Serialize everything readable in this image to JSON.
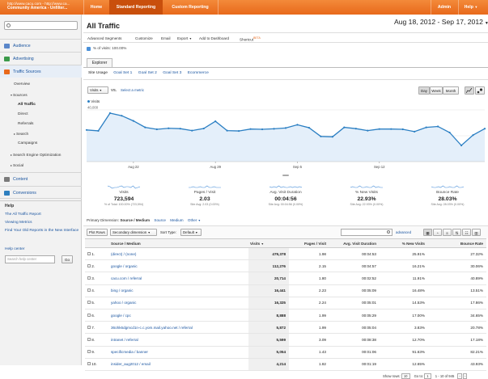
{
  "topbar": {
    "account_url": "http://www.cacu.com - http://www.ca...",
    "account_name": "Community America - Unfilter...",
    "nav": [
      "Home",
      "Standard Reporting",
      "Custom Reporting"
    ],
    "admin": "Admin",
    "help": "Help"
  },
  "sidebar": {
    "sections": [
      "Audience",
      "Advertising",
      "Traffic Sources",
      "Content",
      "Conversions"
    ],
    "traffic_items": {
      "overview": "Overview",
      "sources": "Sources",
      "all_traffic": "All Traffic",
      "direct": "Direct",
      "referrals": "Referrals",
      "search": "Search",
      "campaigns": "Campaigns",
      "seo": "Search Engine Optimization",
      "social": "Social"
    },
    "help_title": "Help",
    "help_links": [
      "The All Traffic Report",
      "Viewing Metrics",
      "Find Your Old Reports in the New Interface"
    ],
    "help_center": "Help center",
    "help_search_placeholder": "Search help center",
    "go_label": "Go"
  },
  "report": {
    "title": "All Traffic",
    "date_range": "Aug 18, 2012 - Sep 17, 2012",
    "toolbar": [
      "Advanced Segments",
      "Customize",
      "Email",
      "Export",
      "Add to Dashboard",
      "Shortcut"
    ],
    "beta": "BETA",
    "segment": "% of visits: 100.00%",
    "explorer_tab": "Explorer",
    "subtabs": [
      "Site Usage",
      "Goal Set 1",
      "Goal Set 2",
      "Goal Set 3",
      "Ecommerce"
    ],
    "metric_select": "Visits",
    "vs": "VS.",
    "select_metric": "Select a metric",
    "period_buttons": [
      "Day",
      "Week",
      "Month"
    ],
    "chart_legend": "Visits"
  },
  "chart_data": {
    "type": "line",
    "series": [
      {
        "name": "Visits",
        "values": [
          24500,
          23800,
          37500,
          35500,
          31500,
          26500,
          25000,
          25800,
          25500,
          24000,
          25600,
          31200,
          24000,
          23700,
          25200,
          25000,
          25400,
          26000,
          28500,
          26200,
          19500,
          19200,
          26500,
          25500,
          24000,
          25200,
          25200,
          25000,
          23200,
          26500,
          27200,
          22500,
          12500,
          20500,
          25500
        ]
      }
    ],
    "x_tick_labels": [
      "Aug 22",
      "Aug 29",
      "Sep 5",
      "Sep 12"
    ],
    "y_tick_labels": [
      "40,000",
      "20,000"
    ],
    "ylim": [
      0,
      45000
    ],
    "color": "#2b7fc3"
  },
  "metrics": [
    {
      "label": "Visits",
      "value": "723,594",
      "sub": "% of Total: 100.00% (723,594)"
    },
    {
      "label": "Pages / Visit",
      "value": "2.03",
      "sub": "Site Avg: 2.03 (0.00%)"
    },
    {
      "label": "Avg. Visit Duration",
      "value": "00:04:56",
      "sub": "Site Avg: 00:04:56 (0.00%)"
    },
    {
      "label": "% New Visits",
      "value": "22.93%",
      "sub": "Site Avg: 22.93% (0.00%)"
    },
    {
      "label": "Bounce Rate",
      "value": "28.03%",
      "sub": "Site Avg: 28.03% (0.00%)"
    }
  ],
  "table_controls": {
    "primary_dimension_label": "Primary Dimension:",
    "dims": [
      "Source / Medium",
      "Source",
      "Medium",
      "Other"
    ],
    "plot_rows": "Plot Rows",
    "secondary_dimension": "Secondary dimension",
    "sort_type_label": "Sort Type:",
    "sort_type_value": "Default",
    "advanced": "advanced"
  },
  "table": {
    "headers": [
      "Source / Medium",
      "Visits",
      "Pages / Visit",
      "Avg. Visit Duration",
      "% New Visits",
      "Bounce Rate"
    ],
    "rows": [
      {
        "n": "1.",
        "source": "(direct) / (none)",
        "visits": "479,378",
        "ppv": "1.98",
        "dur": "00:04:53",
        "new": "25.91%",
        "bounce": "27.32%"
      },
      {
        "n": "2.",
        "source": "google / organic",
        "visits": "112,276",
        "ppv": "2.15",
        "dur": "00:04:57",
        "new": "16.21%",
        "bounce": "30.06%"
      },
      {
        "n": "3.",
        "source": "cacu.com / referral",
        "visits": "20,714",
        "ppv": "1.80",
        "dur": "00:02:52",
        "new": "11.91%",
        "bounce": "40.89%"
      },
      {
        "n": "4.",
        "source": "bing / organic",
        "visits": "16,441",
        "ppv": "2.23",
        "dur": "00:05:09",
        "new": "16.48%",
        "bounce": "13.51%"
      },
      {
        "n": "5.",
        "source": "yahoo / organic",
        "visits": "16,325",
        "ppv": "2.24",
        "dur": "00:05:01",
        "new": "14.53%",
        "bounce": "17.86%"
      },
      {
        "n": "6.",
        "source": "google / cpc",
        "visits": "8,888",
        "ppv": "1.99",
        "dur": "00:05:29",
        "new": "17.00%",
        "bounce": "34.65%"
      },
      {
        "n": "7.",
        "source": "36ohk6dgmcd1n-c.c.yom.mail.yahoo.net / referral",
        "visits": "5,872",
        "ppv": "1.99",
        "dur": "00:05:04",
        "new": "3.83%",
        "bounce": "20.78%"
      },
      {
        "n": "8.",
        "source": "intranet / referral",
        "visits": "5,599",
        "ppv": "3.09",
        "dur": "00:08:38",
        "new": "12.70%",
        "bounce": "17.18%"
      },
      {
        "n": "9.",
        "source": "specificmedia / banner",
        "visits": "5,054",
        "ppv": "1.43",
        "dur": "00:01:06",
        "new": "91.63%",
        "bounce": "82.21%"
      },
      {
        "n": "10.",
        "source": "insider_aug2012 / email",
        "visits": "4,214",
        "ppv": "1.82",
        "dur": "00:01:19",
        "new": "12.65%",
        "bounce": "43.93%"
      }
    ]
  },
  "pager": {
    "show_rows": "Show rows:",
    "rows_value": "10",
    "goto": "Go to:",
    "goto_value": "1",
    "range": "1 - 10 of 945"
  }
}
